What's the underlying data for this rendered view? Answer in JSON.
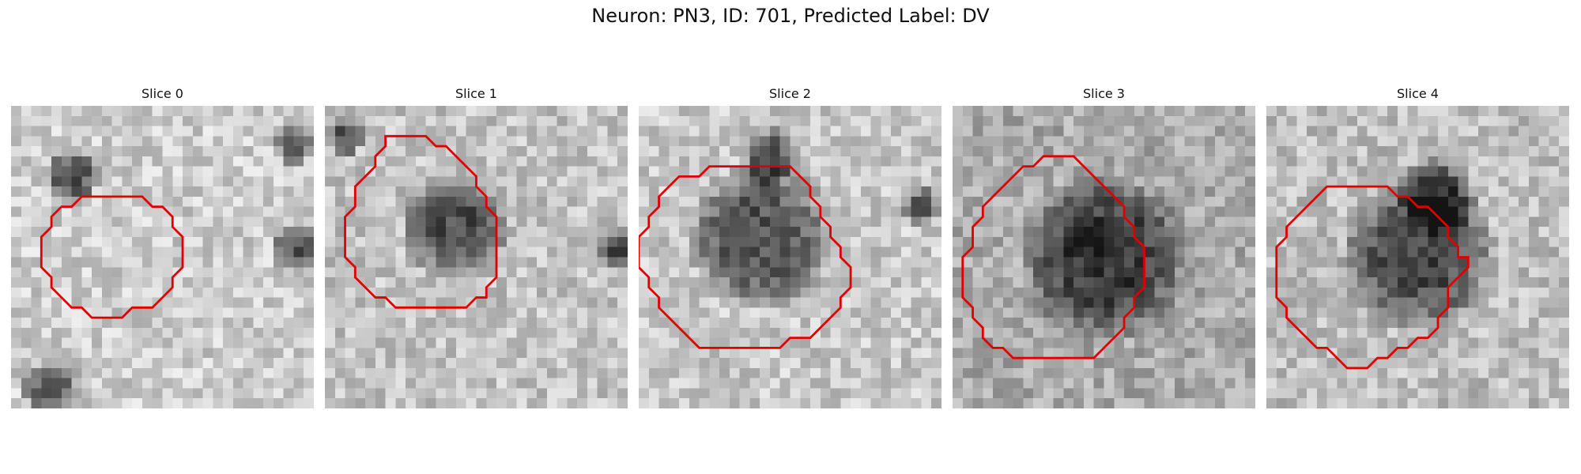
{
  "figure": {
    "title": "Neuron: PN3, ID: 701, Predicted Label: DV"
  },
  "colors": {
    "contour": "#e00000",
    "background": "#ffffff"
  },
  "slices": [
    {
      "label": "Slice 0",
      "contour": [
        [
          9,
          9
        ],
        [
          13,
          9
        ],
        [
          14,
          10
        ],
        [
          15,
          10
        ],
        [
          16,
          11
        ],
        [
          16,
          12
        ],
        [
          17,
          13
        ],
        [
          17,
          16
        ],
        [
          16,
          17
        ],
        [
          16,
          18
        ],
        [
          15,
          19
        ],
        [
          14,
          20
        ],
        [
          12,
          20
        ],
        [
          11,
          21
        ],
        [
          8,
          21
        ],
        [
          7,
          20
        ],
        [
          6,
          20
        ],
        [
          5,
          19
        ],
        [
          4,
          18
        ],
        [
          4,
          17
        ],
        [
          3,
          16
        ],
        [
          3,
          13
        ],
        [
          4,
          12
        ],
        [
          4,
          11
        ],
        [
          5,
          10
        ],
        [
          6,
          10
        ],
        [
          7,
          9
        ]
      ]
    },
    {
      "label": "Slice 1",
      "contour": [
        [
          6,
          3
        ],
        [
          10,
          3
        ],
        [
          11,
          4
        ],
        [
          12,
          4
        ],
        [
          13,
          5
        ],
        [
          14,
          6
        ],
        [
          15,
          7
        ],
        [
          15,
          8
        ],
        [
          16,
          9
        ],
        [
          16,
          10
        ],
        [
          17,
          11
        ],
        [
          17,
          17
        ],
        [
          16,
          18
        ],
        [
          16,
          19
        ],
        [
          15,
          19
        ],
        [
          14,
          20
        ],
        [
          7,
          20
        ],
        [
          6,
          19
        ],
        [
          5,
          19
        ],
        [
          4,
          18
        ],
        [
          3,
          17
        ],
        [
          3,
          16
        ],
        [
          2,
          15
        ],
        [
          2,
          11
        ],
        [
          3,
          10
        ],
        [
          3,
          8
        ],
        [
          4,
          7
        ],
        [
          5,
          6
        ],
        [
          5,
          5
        ],
        [
          6,
          4
        ]
      ]
    },
    {
      "label": "Slice 2",
      "contour": [
        [
          7,
          6
        ],
        [
          15,
          6
        ],
        [
          16,
          7
        ],
        [
          17,
          8
        ],
        [
          17,
          9
        ],
        [
          18,
          10
        ],
        [
          18,
          11
        ],
        [
          19,
          12
        ],
        [
          19,
          13
        ],
        [
          20,
          14
        ],
        [
          20,
          15
        ],
        [
          21,
          16
        ],
        [
          21,
          18
        ],
        [
          20,
          19
        ],
        [
          20,
          20
        ],
        [
          19,
          21
        ],
        [
          18,
          22
        ],
        [
          17,
          23
        ],
        [
          15,
          23
        ],
        [
          14,
          24
        ],
        [
          6,
          24
        ],
        [
          5,
          23
        ],
        [
          4,
          22
        ],
        [
          3,
          21
        ],
        [
          2,
          20
        ],
        [
          2,
          19
        ],
        [
          1,
          18
        ],
        [
          1,
          17
        ],
        [
          0,
          16
        ],
        [
          0,
          13
        ],
        [
          1,
          12
        ],
        [
          1,
          11
        ],
        [
          2,
          10
        ],
        [
          2,
          9
        ],
        [
          3,
          8
        ],
        [
          4,
          7
        ],
        [
          6,
          7
        ]
      ]
    },
    {
      "label": "Slice 3",
      "contour": [
        [
          9,
          5
        ],
        [
          12,
          5
        ],
        [
          13,
          6
        ],
        [
          14,
          7
        ],
        [
          15,
          8
        ],
        [
          16,
          9
        ],
        [
          17,
          10
        ],
        [
          17,
          11
        ],
        [
          18,
          12
        ],
        [
          18,
          13
        ],
        [
          19,
          14
        ],
        [
          19,
          18
        ],
        [
          18,
          19
        ],
        [
          18,
          20
        ],
        [
          17,
          21
        ],
        [
          17,
          22
        ],
        [
          16,
          23
        ],
        [
          15,
          24
        ],
        [
          14,
          25
        ],
        [
          6,
          25
        ],
        [
          5,
          24
        ],
        [
          4,
          24
        ],
        [
          3,
          23
        ],
        [
          3,
          22
        ],
        [
          2,
          21
        ],
        [
          2,
          20
        ],
        [
          1,
          19
        ],
        [
          1,
          15
        ],
        [
          2,
          14
        ],
        [
          2,
          12
        ],
        [
          3,
          11
        ],
        [
          3,
          10
        ],
        [
          4,
          9
        ],
        [
          5,
          8
        ],
        [
          6,
          7
        ],
        [
          7,
          6
        ],
        [
          8,
          6
        ]
      ]
    },
    {
      "label": "Slice 4",
      "contour": [
        [
          10,
          8
        ],
        [
          12,
          8
        ],
        [
          13,
          9
        ],
        [
          14,
          9
        ],
        [
          15,
          10
        ],
        [
          16,
          10
        ],
        [
          17,
          11
        ],
        [
          18,
          12
        ],
        [
          18,
          13
        ],
        [
          19,
          14
        ],
        [
          19,
          15
        ],
        [
          20,
          15
        ],
        [
          20,
          16
        ],
        [
          19,
          17
        ],
        [
          18,
          18
        ],
        [
          18,
          20
        ],
        [
          17,
          21
        ],
        [
          17,
          22
        ],
        [
          16,
          23
        ],
        [
          15,
          23
        ],
        [
          14,
          24
        ],
        [
          13,
          24
        ],
        [
          12,
          25
        ],
        [
          11,
          25
        ],
        [
          10,
          26
        ],
        [
          8,
          26
        ],
        [
          7,
          25
        ],
        [
          6,
          24
        ],
        [
          5,
          24
        ],
        [
          4,
          23
        ],
        [
          3,
          22
        ],
        [
          2,
          21
        ],
        [
          2,
          20
        ],
        [
          1,
          19
        ],
        [
          1,
          14
        ],
        [
          2,
          13
        ],
        [
          2,
          12
        ],
        [
          3,
          11
        ],
        [
          4,
          10
        ],
        [
          5,
          9
        ],
        [
          6,
          8
        ]
      ]
    }
  ]
}
